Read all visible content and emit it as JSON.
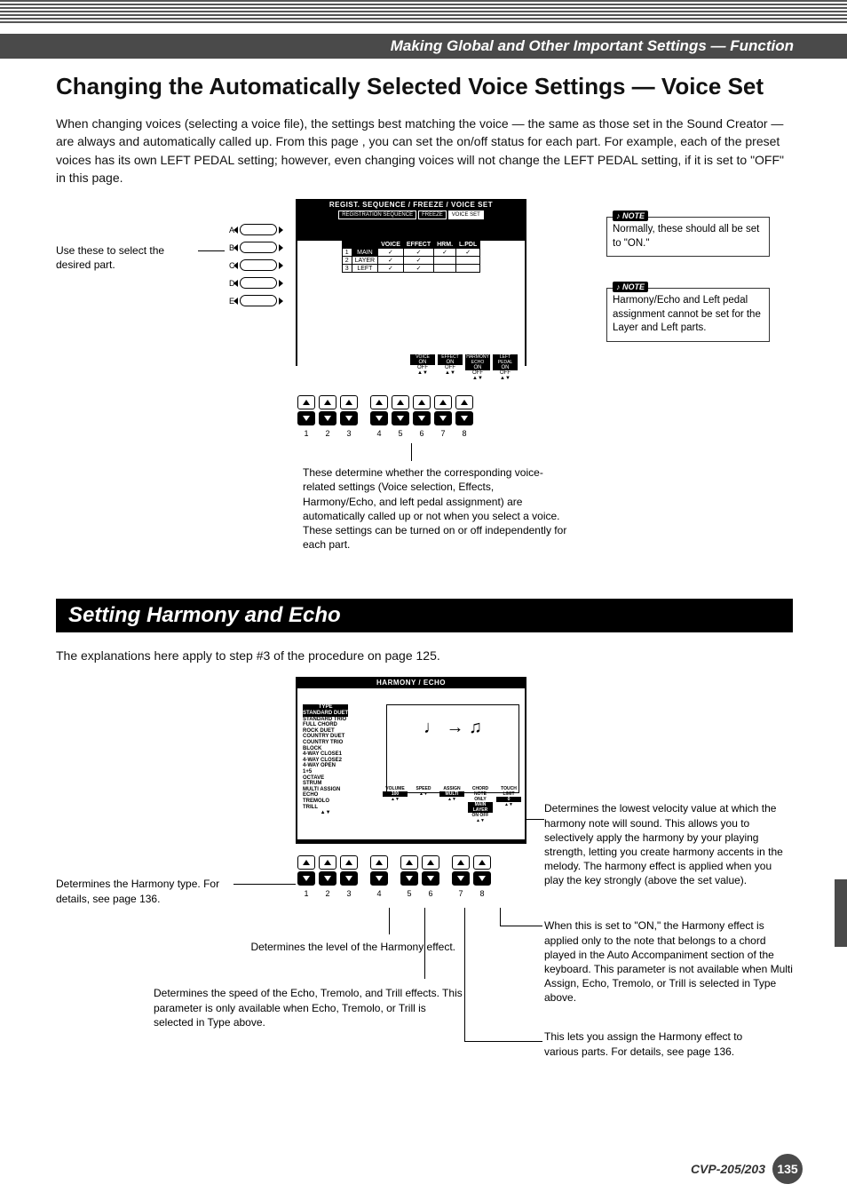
{
  "breadcrumb": "Making Global and Other Important Settings — Function",
  "section1": {
    "title": "Changing the Automatically Selected Voice Settings — Voice Set",
    "intro": "When changing voices (selecting a voice file), the settings best matching the voice — the same as those set in the Sound Creator — are always and automatically called up.  From this page , you can set the on/off status for each part.  For example, each of the preset voices has its own LEFT PEDAL setting; however, even changing voices will not change the LEFT PEDAL setting, if it is set to \"OFF\" in this page.",
    "lcd": {
      "title": "REGIST. SEQUENCE / FREEZE / VOICE SET",
      "tabs": [
        "REGISTRATION SEQUENCE",
        "FREEZE",
        "VOICE SET"
      ],
      "active_tab": 2,
      "cols": [
        "",
        "VOICE",
        "EFFECT",
        "HRM.",
        "L.PDL"
      ],
      "rows": [
        [
          "1",
          "MAIN",
          "✓",
          "✓",
          "✓",
          "✓"
        ],
        [
          "2",
          "LAYER",
          "✓",
          "✓",
          "",
          ""
        ],
        [
          "3",
          "LEFT",
          "✓",
          "✓",
          "",
          ""
        ]
      ],
      "toggles": [
        "VOICE",
        "EFFECT",
        "HARMONY ECHO",
        "LEFT PEDAL"
      ],
      "toggle_state": [
        "ON",
        "ON",
        "ON",
        "ON"
      ],
      "toggle_off": "OFF"
    },
    "panel_letters": [
      "A",
      "B",
      "C",
      "D",
      "E"
    ],
    "button_numbers": [
      "1",
      "2",
      "3",
      "4",
      "5",
      "6",
      "7",
      "8"
    ],
    "annot_left": "Use these to select the desired part.",
    "annot_bottom": "These determine whether the corresponding voice-related settings (Voice selection, Effects, Harmony/Echo, and left pedal assignment) are automatically called up or not when you select a voice. These settings can be turned on or off independently for each part.",
    "note1": "Normally, these should all be set to \"ON.\"",
    "note2": "Harmony/Echo and Left pedal assignment cannot be set for the Layer and Left parts.",
    "note_label": "NOTE"
  },
  "section2": {
    "title": "Setting Harmony and Echo",
    "intro": "The explanations here apply to step #3 of the procedure on page 125.",
    "lcd": {
      "title": "HARMONY / ECHO",
      "type_header": "TYPE",
      "types": [
        "STANDARD DUET",
        "STANDARD TRIO",
        "FULL CHORD",
        "ROCK DUET",
        "COUNTRY DUET",
        "COUNTRY TRIO",
        "BLOCK",
        "4-WAY CLOSE1",
        "4-WAY CLOSE2",
        "4-WAY OPEN",
        "1+5",
        "OCTAVE",
        "STRUM",
        "MULTI ASSIGN",
        "ECHO",
        "TREMOLO",
        "TRILL"
      ],
      "params": [
        "VOLUME",
        "SPEED",
        "ASSIGN",
        "CHORD NOTE ONLY",
        "TOUCH LIMIT"
      ],
      "param_vals": [
        "100",
        "",
        "MULTI",
        "MAIN LAYER",
        "0"
      ],
      "param_vals2": [
        "",
        "",
        "",
        "ON OFF",
        ""
      ]
    },
    "button_numbers": [
      "1",
      "2",
      "3",
      "4",
      "5",
      "6",
      "7",
      "8"
    ],
    "annot_type": "Determines the Harmony type. For details, see page 136.",
    "annot_volume": "Determines the level of the Harmony effect.",
    "annot_speed": "Determines the speed of the Echo, Tremolo, and Trill effects. This parameter is only available when Echo, Tremolo, or Trill is selected in Type above.",
    "annot_touch": "Determines the lowest velocity value at which the harmony note will sound. This allows you to selectively apply the harmony by your playing strength, letting you create harmony accents in the melody. The harmony effect is applied when you play the key strongly (above the set value).",
    "annot_chord": "When this is set to \"ON,\" the Harmony effect is applied only to the note that belongs to a chord played in the Auto Accompaniment section of the keyboard. This parameter is not available when Multi Assign, Echo, Tremolo, or Trill is selected in Type above.",
    "annot_assign": "This lets you assign the Harmony effect to various parts. For details, see page 136."
  },
  "footer": {
    "model": "CVP-205/203",
    "page": "135"
  },
  "colors": {
    "bar": "#4a4a4a",
    "text": "#111111"
  }
}
